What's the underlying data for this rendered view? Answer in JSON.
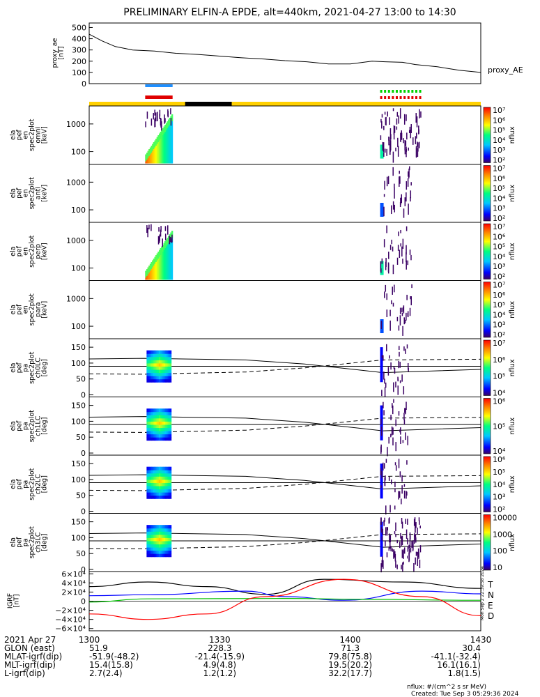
{
  "chart_data": {
    "type": "heatmap",
    "title": "PRELIMINARY ELFIN-A EPDE, alt=440km, 2021-04-27 13:00 to 14:30",
    "x_ticks": [
      "1300",
      "1330",
      "1400",
      "1430"
    ],
    "xlim": [
      1300,
      1430
    ],
    "ae_panel": {
      "ylabel": [
        "proxy_ae",
        "[nT]"
      ],
      "yticks": [
        "0",
        "100",
        "200",
        "300",
        "400",
        "500"
      ],
      "ylim": [
        0,
        540
      ],
      "legend": "proxy_AE",
      "x": [
        1300,
        1303,
        1306,
        1310,
        1315,
        1320,
        1325,
        1330,
        1335,
        1340,
        1345,
        1350,
        1355,
        1400,
        1403,
        1405,
        1408,
        1412,
        1415,
        1420,
        1425,
        1430
      ],
      "y": [
        440,
        380,
        330,
        300,
        290,
        270,
        260,
        245,
        230,
        220,
        205,
        195,
        175,
        175,
        190,
        200,
        195,
        190,
        170,
        150,
        120,
        100
      ]
    },
    "spec_panels": [
      {
        "ylabel": [
          "ela",
          "pef",
          "en",
          "spec2plot",
          "omni",
          "[keV]"
        ],
        "yticks": [
          "100",
          "1000"
        ],
        "cbar_labels": [
          "10²",
          "10³",
          "10⁴",
          "10⁵",
          "10⁶",
          "10⁷"
        ],
        "cbar_title": "nflux"
      },
      {
        "ylabel": [
          "ela",
          "pef",
          "en",
          "spec2plot",
          "anti",
          "[keV]"
        ],
        "yticks": [
          "100",
          "1000"
        ],
        "cbar_labels": [
          "10²",
          "10³",
          "10⁴",
          "10⁵",
          "10⁶",
          "10⁷"
        ],
        "cbar_title": "nflux"
      },
      {
        "ylabel": [
          "ela",
          "pef",
          "en",
          "spec2plot",
          "perp",
          "[keV]"
        ],
        "yticks": [
          "100",
          "1000"
        ],
        "cbar_labels": [
          "10²",
          "10³",
          "10⁴",
          "10⁵",
          "10⁶",
          "10⁷"
        ],
        "cbar_title": "nflux"
      },
      {
        "ylabel": [
          "ela",
          "pef",
          "en",
          "spec2plot",
          "para",
          "[keV]"
        ],
        "yticks": [
          "100",
          "1000"
        ],
        "cbar_labels": [
          "10²",
          "10³",
          "10⁴",
          "10⁵",
          "10⁶",
          "10⁷"
        ],
        "cbar_title": "nflux"
      }
    ],
    "pa_panels": [
      {
        "ylabel": [
          "ela",
          "pef",
          "pa",
          "spec2plot",
          "ch0LC",
          "[deg]"
        ],
        "yticks": [
          "0",
          "50",
          "100",
          "150"
        ],
        "cbar_labels": [
          "10⁴",
          "10⁵",
          "10⁶",
          "10⁷"
        ],
        "cbar_title": "nflux"
      },
      {
        "ylabel": [
          "ela",
          "pef",
          "pa",
          "spec2plot",
          "ch1LC",
          "[deg]"
        ],
        "yticks": [
          "0",
          "50",
          "100",
          "150"
        ],
        "cbar_labels": [
          "10⁴",
          "10⁵",
          "10⁶"
        ],
        "cbar_title": "nflux"
      },
      {
        "ylabel": [
          "ela",
          "pef",
          "pa",
          "spec2plot",
          "ch2LC",
          "[deg]"
        ],
        "yticks": [
          "0",
          "50",
          "100",
          "150"
        ],
        "cbar_labels": [
          "10²",
          "10³",
          "10⁴",
          "10⁵",
          "10⁶"
        ],
        "cbar_title": "nflux"
      },
      {
        "ylabel": [
          "ela",
          "pef",
          "pa",
          "spec2plot",
          "ch3LC",
          "[deg]"
        ],
        "yticks": [
          "0",
          "50",
          "100",
          "150"
        ],
        "cbar_labels": [
          "10",
          "100",
          "1000",
          "10000"
        ],
        "cbar_title": "nflux"
      }
    ],
    "igrf_panel": {
      "ylabel": [
        "IGRF",
        "[nT]"
      ],
      "yticks": [
        "−6×10⁴",
        "−4×10⁴",
        "−2×10⁴",
        "0",
        "2×10⁴",
        "4×10⁴",
        "6×10⁴"
      ],
      "ylim": [
        -65000,
        65000
      ],
      "series": [
        {
          "name": "T",
          "color": "#000000"
        },
        {
          "name": "N",
          "color": "#0000ff"
        },
        {
          "name": "E",
          "color": "#00c000"
        },
        {
          "name": "D",
          "color": "#ff0000"
        }
      ],
      "side_text": "Mon Sep 2 22:39:58 2024"
    },
    "orbit_table": {
      "date": "2021 Apr 27",
      "rows": [
        {
          "label": "GLON (east)",
          "values": [
            "51.9",
            "228.3",
            "71.3",
            "30.4"
          ]
        },
        {
          "label": "MLAT-igrf(dip)",
          "values": [
            "-51.9(-48.2)",
            "-21.4(-15.9)",
            "79.8(75.8)",
            "-41.1(-32.4)"
          ]
        },
        {
          "label": "MLT-igrf(dip)",
          "values": [
            "15.4(15.8)",
            "4.9(4.8)",
            "19.5(20.2)",
            "16.1(16.1)"
          ]
        },
        {
          "label": "L-igrf(dip)",
          "values": [
            "2.7(2.4)",
            "1.2(1.2)",
            "32.2(17.7)",
            "1.8(1.5)"
          ]
        }
      ]
    },
    "footer": {
      "units": "nflux: #/(cm^2 s sr MeV)",
      "created": "Created: Tue Sep  3 05:29:36 2024"
    }
  }
}
